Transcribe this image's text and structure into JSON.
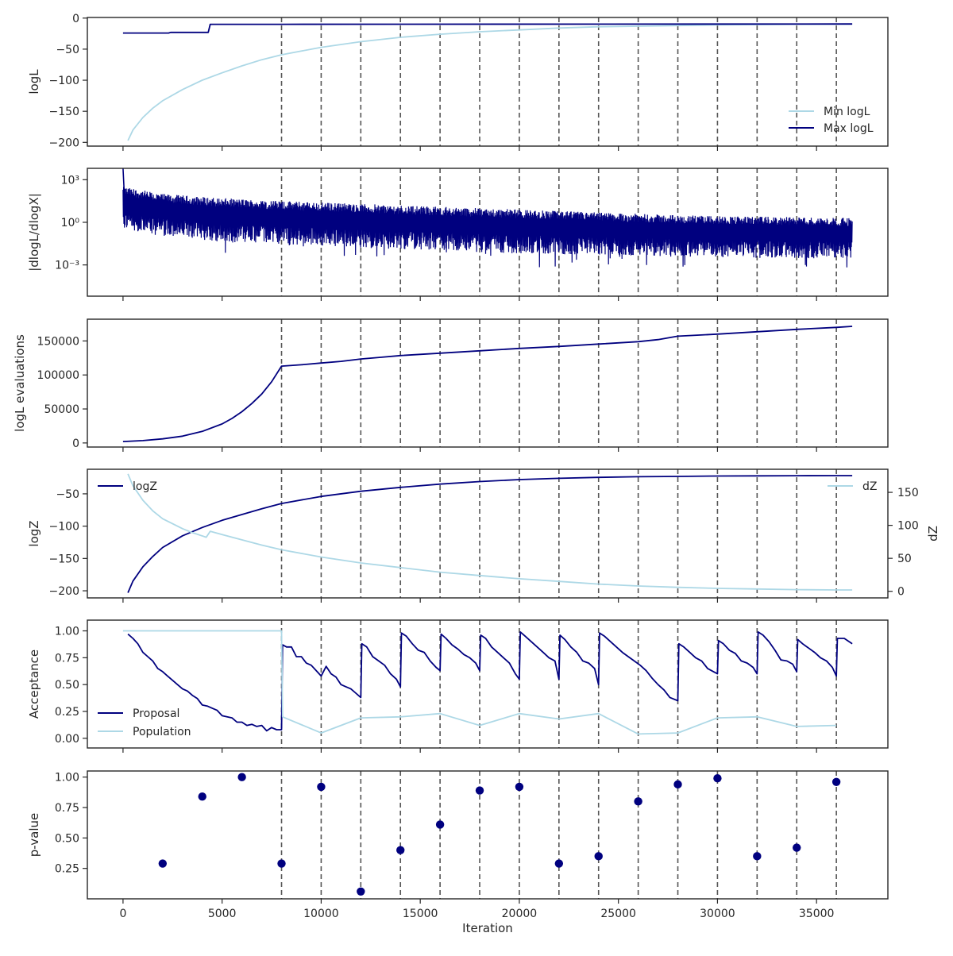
{
  "colors": {
    "dark": "#00007f",
    "light": "#add8e6",
    "axis": "#262626",
    "vline": "#555555"
  },
  "x_axis": {
    "label": "Iteration",
    "range": [
      -1800,
      38600
    ],
    "ticks": [
      0,
      5000,
      10000,
      15000,
      20000,
      25000,
      30000,
      35000
    ],
    "tick_labels": [
      "0",
      "5000",
      "10000",
      "15000",
      "20000",
      "25000",
      "30000",
      "35000"
    ]
  },
  "vlines": [
    8000,
    10000,
    12000,
    14000,
    16000,
    18000,
    20000,
    22000,
    24000,
    26000,
    28000,
    30000,
    32000,
    34000,
    36000
  ],
  "chart_data": [
    {
      "id": "logl",
      "type": "line",
      "ylabel": "logL",
      "ylim": [
        -206,
        1
      ],
      "yticks": [
        0,
        -50,
        -100,
        -150,
        -200
      ],
      "ytick_labels": [
        "0",
        "−50",
        "−100",
        "−150",
        "−200"
      ],
      "legend": {
        "position": "lower-right",
        "entries": [
          "Min logL",
          "Max logL"
        ]
      },
      "series": [
        {
          "name": "Min logL",
          "color": "light",
          "x": [
            250,
            500,
            1000,
            1500,
            2000,
            3000,
            4000,
            5000,
            6000,
            7000,
            8000,
            9000,
            10000,
            12000,
            14000,
            16000,
            18000,
            20000,
            22000,
            24000,
            26000,
            28000,
            30000,
            32000,
            34000,
            36000,
            36800
          ],
          "y": [
            -197,
            -180,
            -160,
            -145,
            -133,
            -115,
            -100,
            -88,
            -77,
            -67,
            -59,
            -53,
            -47,
            -38,
            -31,
            -26,
            -22,
            -19,
            -16,
            -14,
            -13,
            -12,
            -11,
            -10.5,
            -10,
            -9.8,
            -9.7
          ]
        },
        {
          "name": "Max logL",
          "color": "dark",
          "x": [
            0,
            2300,
            2400,
            4300,
            4400,
            8000,
            36800
          ],
          "y": [
            -24,
            -24,
            -23,
            -23,
            -10,
            -10,
            -9.5
          ]
        }
      ]
    },
    {
      "id": "dlogl",
      "type": "line",
      "ylabel": "|dlogL/dlogX|",
      "yscale": "log",
      "ylim": [
        -5.2,
        3.8
      ],
      "yticks": [
        3,
        0,
        -3
      ],
      "ytick_labels": [
        "10³",
        "10⁰",
        "10⁻³"
      ],
      "series": [
        {
          "name": "",
          "color": "dark",
          "x": [
            0,
            2000,
            5000,
            8000,
            12000,
            16000,
            20000,
            24000,
            28000,
            32000,
            36800
          ],
          "y_upper_log10": [
            2.5,
            2.0,
            1.7,
            1.5,
            1.3,
            1.1,
            0.9,
            0.7,
            0.5,
            0.4,
            0.3
          ],
          "y_lower_log10": [
            -0.5,
            -1.0,
            -1.4,
            -1.6,
            -1.8,
            -2.0,
            -2.2,
            -2.3,
            -2.4,
            -2.5,
            -2.6
          ],
          "spike_x": [
            0,
            100
          ],
          "spike_log10": [
            3.8,
            1.0
          ]
        }
      ]
    },
    {
      "id": "evals",
      "type": "line",
      "ylabel": "logL evaluations",
      "ylim": [
        -6000,
        182000
      ],
      "yticks": [
        0,
        50000,
        100000,
        150000
      ],
      "ytick_labels": [
        "0",
        "50000",
        "100000",
        "150000"
      ],
      "series": [
        {
          "name": "",
          "color": "dark",
          "x": [
            0,
            1000,
            2000,
            3000,
            4000,
            5000,
            5500,
            6000,
            6500,
            7000,
            7500,
            8000,
            9000,
            10000,
            11000,
            12000,
            13000,
            14000,
            16000,
            18000,
            20000,
            22000,
            24000,
            26000,
            27000,
            28000,
            30000,
            32000,
            34000,
            36000,
            36800
          ],
          "y": [
            2000,
            3500,
            6000,
            10000,
            17000,
            28000,
            36000,
            46000,
            58000,
            72000,
            90000,
            113000,
            115000,
            117500,
            120000,
            123500,
            126000,
            128500,
            132000,
            135500,
            139000,
            142000,
            145500,
            149000,
            152000,
            157000,
            160000,
            163500,
            167000,
            170000,
            171500
          ]
        }
      ]
    },
    {
      "id": "logz",
      "type": "line",
      "ylabel": "logZ",
      "ylim": [
        -211,
        -12
      ],
      "yticks": [
        -50,
        -100,
        -150,
        -200
      ],
      "ytick_labels": [
        "−50",
        "−100",
        "−150",
        "−200"
      ],
      "y2label": "dZ",
      "y2lim": [
        -10,
        185
      ],
      "y2ticks": [
        0,
        50,
        100,
        150
      ],
      "y2tick_labels": [
        "0",
        "50",
        "100",
        "150"
      ],
      "legend": {
        "left": "logZ",
        "right": "dZ"
      },
      "series": [
        {
          "name": "logZ",
          "color": "dark",
          "axis": "left",
          "x": [
            250,
            500,
            1000,
            1500,
            2000,
            3000,
            4000,
            5000,
            6000,
            7000,
            8000,
            10000,
            12000,
            14000,
            16000,
            18000,
            20000,
            22000,
            24000,
            26000,
            28000,
            30000,
            32000,
            34000,
            36000,
            36800
          ],
          "y": [
            -203,
            -185,
            -163,
            -147,
            -133,
            -115,
            -102,
            -91,
            -82,
            -73,
            -65,
            -54,
            -46,
            -40,
            -35,
            -31,
            -28,
            -26,
            -24.5,
            -23.5,
            -23,
            -22.5,
            -22.2,
            -22,
            -21.8,
            -21.8
          ]
        },
        {
          "name": "dZ",
          "color": "light",
          "axis": "right",
          "x": [
            250,
            500,
            1000,
            1500,
            2000,
            3000,
            3500,
            4200,
            4400,
            5000,
            6000,
            7000,
            8000,
            10000,
            12000,
            14000,
            16000,
            18000,
            20000,
            22000,
            24000,
            26000,
            28000,
            30000,
            32000,
            34000,
            36000,
            36800
          ],
          "y": [
            178,
            160,
            138,
            122,
            110,
            95,
            89,
            82,
            91,
            86,
            78,
            70,
            63,
            52,
            43,
            36,
            29,
            24,
            19,
            15,
            11,
            8,
            6,
            4.5,
            3.5,
            2.5,
            2,
            2
          ]
        }
      ]
    },
    {
      "id": "acceptance",
      "type": "line",
      "ylabel": "Acceptance",
      "ylim": [
        -0.09,
        1.1
      ],
      "yticks": [
        1.0,
        0.75,
        0.5,
        0.25,
        0.0
      ],
      "ytick_labels": [
        "1.00",
        "0.75",
        "0.50",
        "0.25",
        "0.00"
      ],
      "legend": {
        "position": "lower-left",
        "entries": [
          "Proposal",
          "Population"
        ]
      },
      "series": [
        {
          "name": "Proposal",
          "color": "dark",
          "x": [
            250,
            500,
            750,
            1000,
            1250,
            1500,
            1750,
            2000,
            2250,
            2500,
            2750,
            3000,
            3250,
            3500,
            3750,
            4000,
            4250,
            4500,
            4750,
            5000,
            5250,
            5500,
            5750,
            6000,
            6250,
            6500,
            6750,
            7000,
            7250,
            7500,
            7750,
            8000,
            8050,
            8250,
            8500,
            8750,
            9000,
            9250,
            9500,
            9750,
            10000,
            10250,
            10500,
            10750,
            11000,
            11250,
            11500,
            11750,
            12000,
            12050,
            12300,
            12600,
            12900,
            13200,
            13500,
            13800,
            14000,
            14050,
            14300,
            14600,
            14900,
            15200,
            15500,
            15800,
            16000,
            16050,
            16300,
            16600,
            16900,
            17200,
            17500,
            17800,
            18000,
            18050,
            18300,
            18600,
            18900,
            19200,
            19500,
            19800,
            20000,
            20050,
            20300,
            20600,
            20900,
            21200,
            21500,
            21800,
            22000,
            22050,
            22300,
            22600,
            22900,
            23200,
            23500,
            23800,
            24000,
            24050,
            24300,
            24600,
            24900,
            25200,
            25500,
            25800,
            26100,
            26400,
            26700,
            27000,
            27300,
            27600,
            28000,
            28050,
            28300,
            28600,
            28900,
            29200,
            29500,
            29800,
            30000,
            30050,
            30300,
            30600,
            30900,
            31200,
            31500,
            31800,
            32000,
            32050,
            32300,
            32600,
            32900,
            33200,
            33500,
            33800,
            34000,
            34050,
            34300,
            34600,
            34900,
            35200,
            35500,
            35800,
            36000,
            36050,
            36400,
            36800
          ],
          "y": [
            0.97,
            0.93,
            0.88,
            0.8,
            0.76,
            0.72,
            0.65,
            0.62,
            0.58,
            0.54,
            0.5,
            0.46,
            0.44,
            0.4,
            0.37,
            0.31,
            0.3,
            0.28,
            0.26,
            0.21,
            0.2,
            0.19,
            0.15,
            0.15,
            0.12,
            0.13,
            0.11,
            0.12,
            0.07,
            0.1,
            0.08,
            0.08,
            0.87,
            0.85,
            0.85,
            0.76,
            0.76,
            0.7,
            0.68,
            0.63,
            0.58,
            0.67,
            0.6,
            0.57,
            0.5,
            0.48,
            0.46,
            0.42,
            0.38,
            0.88,
            0.85,
            0.76,
            0.72,
            0.68,
            0.6,
            0.55,
            0.48,
            0.98,
            0.95,
            0.88,
            0.82,
            0.8,
            0.72,
            0.66,
            0.63,
            0.97,
            0.93,
            0.87,
            0.83,
            0.78,
            0.75,
            0.7,
            0.63,
            0.96,
            0.93,
            0.85,
            0.8,
            0.75,
            0.7,
            0.6,
            0.55,
            0.99,
            0.95,
            0.9,
            0.85,
            0.8,
            0.75,
            0.72,
            0.55,
            0.96,
            0.92,
            0.85,
            0.8,
            0.72,
            0.7,
            0.65,
            0.5,
            0.98,
            0.95,
            0.9,
            0.85,
            0.8,
            0.76,
            0.72,
            0.68,
            0.63,
            0.56,
            0.5,
            0.45,
            0.38,
            0.35,
            0.88,
            0.85,
            0.8,
            0.75,
            0.72,
            0.65,
            0.62,
            0.6,
            0.91,
            0.88,
            0.82,
            0.79,
            0.72,
            0.7,
            0.66,
            0.6,
            0.99,
            0.96,
            0.9,
            0.82,
            0.73,
            0.72,
            0.69,
            0.62,
            0.92,
            0.88,
            0.84,
            0.8,
            0.75,
            0.72,
            0.66,
            0.58,
            0.93,
            0.93,
            0.88
          ]
        },
        {
          "name": "Population",
          "color": "light",
          "x": [
            0,
            8000,
            8050,
            10000,
            12000,
            14000,
            16000,
            18000,
            20000,
            22000,
            24000,
            26000,
            28000,
            30000,
            32000,
            34000,
            36000
          ],
          "y": [
            1.0,
            1.0,
            0.2,
            0.05,
            0.19,
            0.2,
            0.23,
            0.12,
            0.23,
            0.18,
            0.23,
            0.04,
            0.05,
            0.19,
            0.2,
            0.11,
            0.12
          ]
        }
      ]
    },
    {
      "id": "pvalue",
      "type": "scatter",
      "ylabel": "p-value",
      "xlabel": "Iteration",
      "ylim": [
        0.0,
        1.05
      ],
      "yticks": [
        1.0,
        0.75,
        0.5,
        0.25
      ],
      "ytick_labels": [
        "1.00",
        "0.75",
        "0.50",
        "0.25"
      ],
      "series": [
        {
          "name": "",
          "color": "dark",
          "x": [
            2000,
            4000,
            6000,
            8000,
            10000,
            12000,
            14000,
            16000,
            18000,
            20000,
            22000,
            24000,
            26000,
            28000,
            30000,
            32000,
            34000,
            36000
          ],
          "y": [
            0.29,
            0.84,
            1.0,
            0.29,
            0.92,
            0.06,
            0.4,
            0.61,
            0.89,
            0.92,
            0.29,
            0.35,
            0.8,
            0.94,
            0.99,
            0.35,
            0.42,
            0.96
          ]
        }
      ]
    }
  ]
}
